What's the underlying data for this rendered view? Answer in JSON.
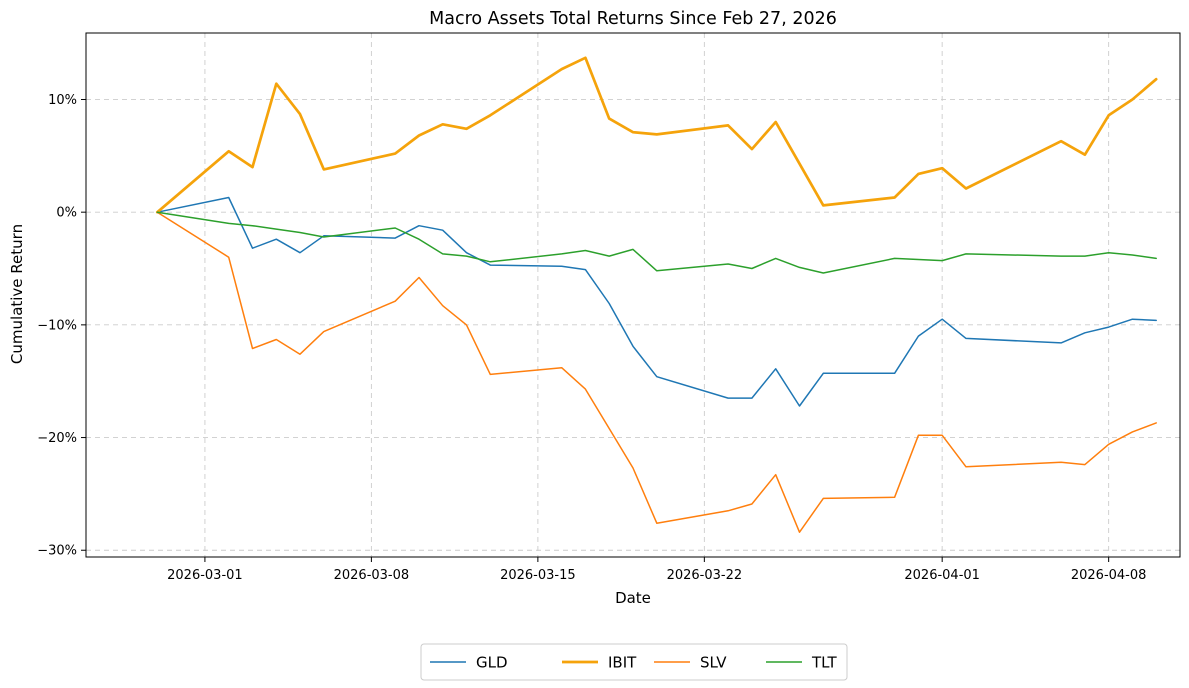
{
  "chart_data": {
    "type": "line",
    "title": "Macro Assets Total Returns Since Feb 27, 2026",
    "xlabel": "Date",
    "ylabel": "Cumulative Return",
    "xlim": [
      "2026-02-24",
      "2026-04-11"
    ],
    "ylim": [
      -30.6,
      15.9
    ],
    "x_ticks": [
      "2026-03-01",
      "2026-03-08",
      "2026-03-15",
      "2026-03-22",
      "2026-04-01",
      "2026-04-08"
    ],
    "y_ticks": [
      -30,
      -20,
      -10,
      0,
      10
    ],
    "y_tick_labels": [
      "−30%",
      "−20%",
      "−10%",
      "0%",
      "10%"
    ],
    "grid": true,
    "legend_position": "bottom-center",
    "dates": [
      "2026-02-27",
      "2026-03-02",
      "2026-03-03",
      "2026-03-04",
      "2026-03-05",
      "2026-03-06",
      "2026-03-09",
      "2026-03-10",
      "2026-03-11",
      "2026-03-12",
      "2026-03-13",
      "2026-03-16",
      "2026-03-17",
      "2026-03-18",
      "2026-03-19",
      "2026-03-20",
      "2026-03-23",
      "2026-03-24",
      "2026-03-25",
      "2026-03-26",
      "2026-03-27",
      "2026-03-30",
      "2026-03-31",
      "2026-04-01",
      "2026-04-02",
      "2026-04-06",
      "2026-04-07",
      "2026-04-08",
      "2026-04-09",
      "2026-04-10"
    ],
    "series": [
      {
        "name": "GLD",
        "color": "#1f77b4",
        "width": 1.5,
        "values": [
          0,
          1.3,
          -3.2,
          -2.4,
          -3.6,
          -2.1,
          -2.3,
          -1.2,
          -1.6,
          -3.6,
          -4.7,
          -4.8,
          -5.1,
          -8.1,
          -11.9,
          -14.6,
          -16.5,
          -16.5,
          -13.9,
          -17.2,
          -14.3,
          -14.3,
          -11.0,
          -9.5,
          -11.2,
          -11.6,
          -10.7,
          -10.2,
          -9.5,
          -9.6
        ]
      },
      {
        "name": "IBIT",
        "color": "#f5a30b",
        "width": 2.7,
        "values": [
          0,
          5.4,
          4.0,
          11.4,
          8.7,
          3.8,
          5.2,
          6.8,
          7.8,
          7.4,
          8.6,
          12.7,
          13.7,
          8.3,
          7.1,
          6.9,
          7.7,
          5.6,
          8.0,
          4.3,
          0.6,
          1.3,
          3.4,
          3.9,
          2.1,
          6.3,
          5.1,
          8.6,
          10.0,
          11.8
        ]
      },
      {
        "name": "SLV",
        "color": "#ff7f0e",
        "width": 1.5,
        "values": [
          0,
          -4.0,
          -12.1,
          -11.3,
          -12.6,
          -10.6,
          -7.9,
          -5.8,
          -8.3,
          -10.0,
          -14.4,
          -13.8,
          -15.7,
          -19.2,
          -22.7,
          -27.6,
          -26.5,
          -25.9,
          -23.3,
          -28.4,
          -25.4,
          -25.3,
          -19.8,
          -19.8,
          -22.6,
          -22.2,
          -22.4,
          -20.6,
          -19.5,
          -18.7
        ]
      },
      {
        "name": "TLT",
        "color": "#2ca02c",
        "width": 1.5,
        "values": [
          0,
          -1.0,
          -1.2,
          -1.5,
          -1.8,
          -2.2,
          -1.4,
          -2.4,
          -3.7,
          -3.9,
          -4.4,
          -3.7,
          -3.4,
          -3.9,
          -3.3,
          -5.2,
          -4.6,
          -5.0,
          -4.1,
          -4.9,
          -5.4,
          -4.1,
          -4.2,
          -4.3,
          -3.7,
          -3.9,
          -3.9,
          -3.6,
          -3.8,
          -4.1
        ]
      }
    ]
  }
}
